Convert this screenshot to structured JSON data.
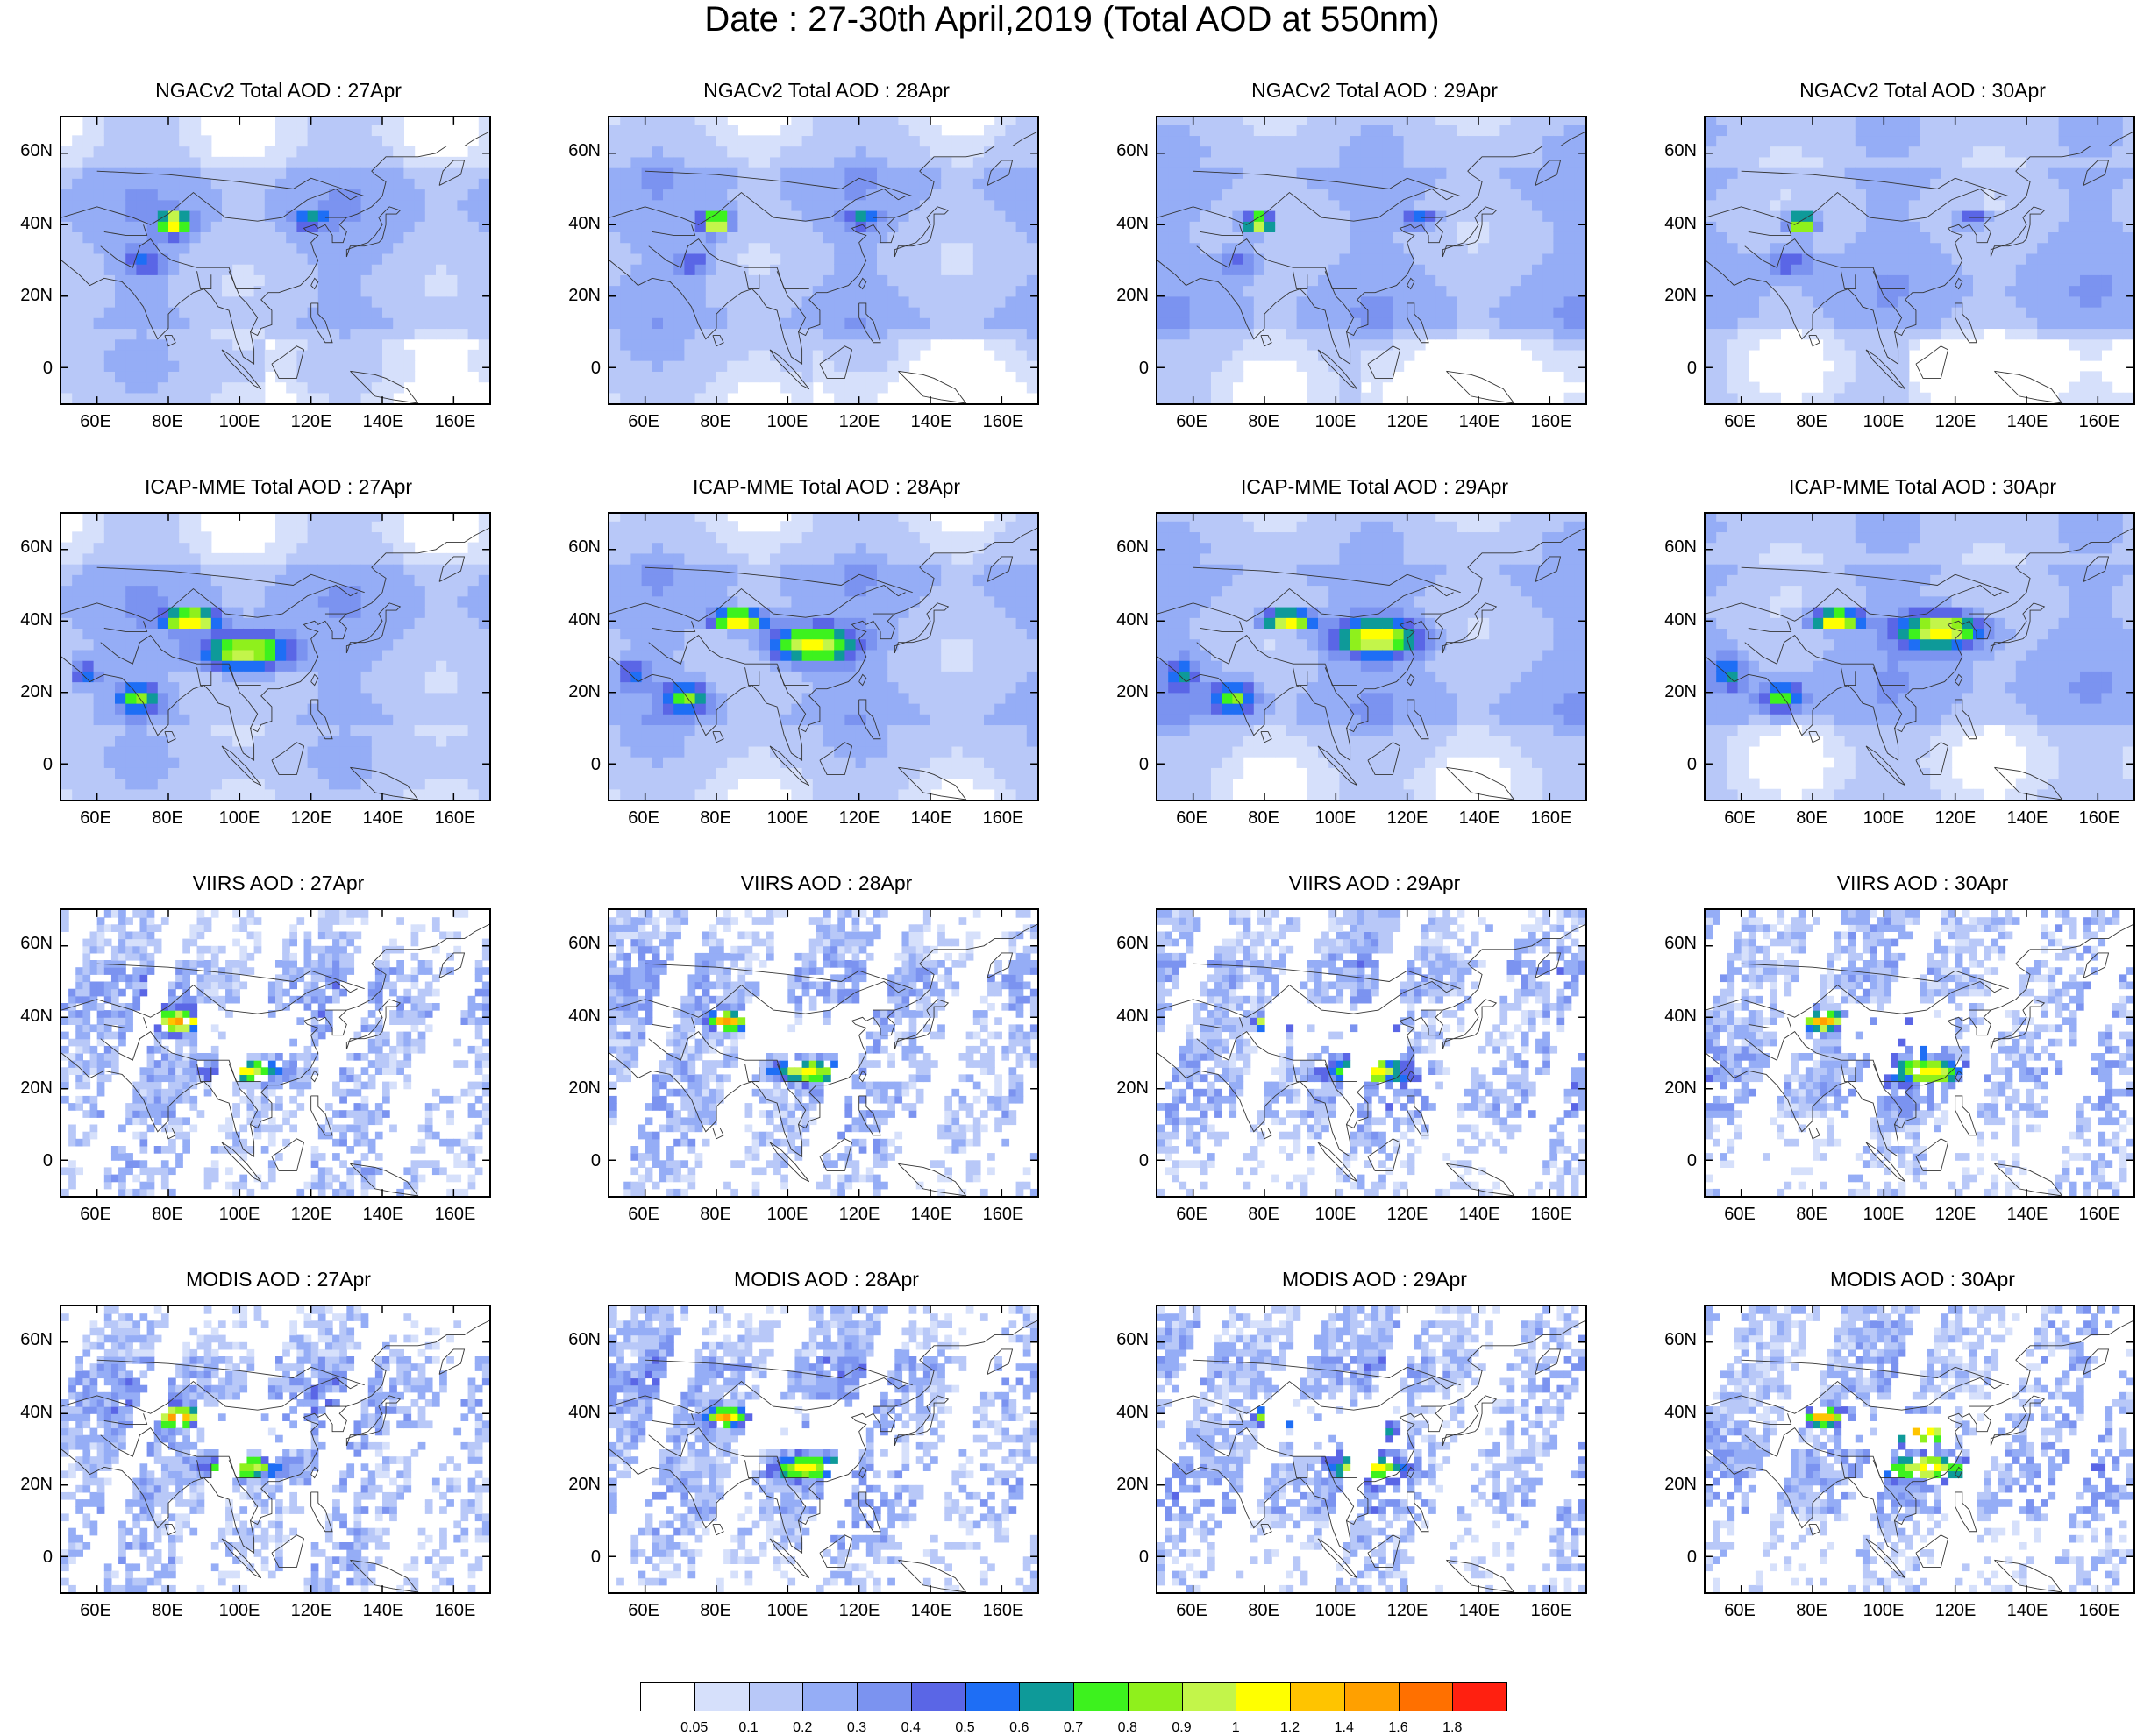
{
  "title": "Date : 27-30th April,2019 (Total AOD at 550nm)",
  "rows": [
    {
      "kind": "model",
      "panels": [
        "NGACv2 Total AOD : 27Apr",
        "NGACv2 Total AOD : 28Apr",
        "NGACv2 Total AOD : 29Apr",
        "NGACv2 Total AOD : 30Apr"
      ]
    },
    {
      "kind": "model",
      "panels": [
        "ICAP-MME Total AOD : 27Apr",
        "ICAP-MME Total AOD : 28Apr",
        "ICAP-MME Total AOD : 29Apr",
        "ICAP-MME Total AOD : 30Apr"
      ]
    },
    {
      "kind": "sat",
      "panels": [
        "VIIRS AOD : 27Apr",
        "VIIRS AOD : 28Apr",
        "VIIRS AOD : 29Apr",
        "VIIRS AOD : 30Apr"
      ]
    },
    {
      "kind": "sat",
      "panels": [
        "MODIS AOD : 27Apr",
        "MODIS AOD : 28Apr",
        "MODIS AOD : 29Apr",
        "MODIS AOD : 30Apr"
      ]
    }
  ],
  "lat_labels": [
    "60N",
    "40N",
    "20N",
    "0"
  ],
  "lon_labels": [
    "60E",
    "80E",
    "100E",
    "120E",
    "140E",
    "160E"
  ],
  "colorbar": {
    "labels": [
      "0.05",
      "0.1",
      "0.2",
      "0.3",
      "0.4",
      "0.5",
      "0.6",
      "0.7",
      "0.8",
      "0.9",
      "1",
      "1.2",
      "1.4",
      "1.6",
      "1.8"
    ],
    "colors": [
      "#ffffff",
      "#d6e0fb",
      "#b8c8f8",
      "#95adf6",
      "#7b93f0",
      "#5a66e6",
      "#1e6ef5",
      "#0e9a99",
      "#3df21e",
      "#8ff01c",
      "#c3f54a",
      "#ffff00",
      "#ffc400",
      "#ffa000",
      "#ff7000",
      "#ff2010"
    ]
  }
}
